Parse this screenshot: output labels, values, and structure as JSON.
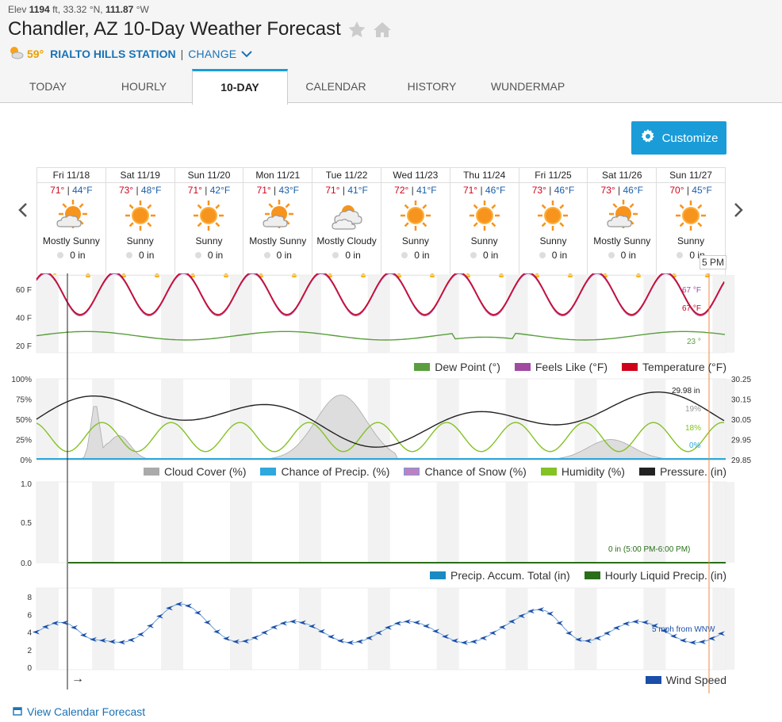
{
  "header": {
    "elev_label": "Elev",
    "elev_value": "1194",
    "elev_unit": "ft,",
    "lat_value": "33.32",
    "lat_unit": "°N,",
    "lon_value": "111.87",
    "lon_unit": "°W",
    "title": "Chandler, AZ 10-Day Weather Forecast",
    "current_temp": "59°",
    "station_name": "RIALTO HILLS STATION",
    "station_sep": "|",
    "change_label": "CHANGE"
  },
  "tabs": [
    {
      "label": "TODAY",
      "active": false
    },
    {
      "label": "HOURLY",
      "active": false
    },
    {
      "label": "10-DAY",
      "active": true
    },
    {
      "label": "CALENDAR",
      "active": false
    },
    {
      "label": "HISTORY",
      "active": false
    },
    {
      "label": "WUNDERMAP",
      "active": false
    }
  ],
  "customize_label": "Customize",
  "days": [
    {
      "date": "Fri 11/18",
      "hi": "71°",
      "lo": "44°F",
      "cond": "Mostly Sunny",
      "icon": "mostly-sunny-icon",
      "precip": "0 in"
    },
    {
      "date": "Sat 11/19",
      "hi": "73°",
      "lo": "48°F",
      "cond": "Sunny",
      "icon": "sunny-icon",
      "precip": "0 in"
    },
    {
      "date": "Sun 11/20",
      "hi": "71°",
      "lo": "42°F",
      "cond": "Sunny",
      "icon": "sunny-icon",
      "precip": "0 in"
    },
    {
      "date": "Mon 11/21",
      "hi": "71°",
      "lo": "43°F",
      "cond": "Mostly Sunny",
      "icon": "mostly-sunny-icon",
      "precip": "0 in"
    },
    {
      "date": "Tue 11/22",
      "hi": "71°",
      "lo": "41°F",
      "cond": "Mostly Cloudy",
      "icon": "mostly-cloudy-icon",
      "precip": "0 in"
    },
    {
      "date": "Wed 11/23",
      "hi": "72°",
      "lo": "41°F",
      "cond": "Sunny",
      "icon": "sunny-icon",
      "precip": "0 in"
    },
    {
      "date": "Thu 11/24",
      "hi": "71°",
      "lo": "46°F",
      "cond": "Sunny",
      "icon": "sunny-icon",
      "precip": "0 in"
    },
    {
      "date": "Fri 11/25",
      "hi": "73°",
      "lo": "46°F",
      "cond": "Sunny",
      "icon": "sunny-icon",
      "precip": "0 in"
    },
    {
      "date": "Sat 11/26",
      "hi": "73°",
      "lo": "46°F",
      "cond": "Mostly Sunny",
      "icon": "mostly-sunny-icon",
      "precip": "0 in"
    },
    {
      "date": "Sun 11/27",
      "hi": "70°",
      "lo": "45°F",
      "cond": "Sunny",
      "icon": "sunny-icon",
      "precip": "0 in"
    }
  ],
  "cursor_label": "5 PM",
  "temp_chart": {
    "y_ticks": [
      "60 F",
      "40 F",
      "20 F"
    ],
    "feels_like_readout": "67 °F",
    "temp_readout": "67 °F",
    "dew_readout": "23 °",
    "legend": [
      {
        "label": "Dew Point (°)",
        "color": "#5a9e3e"
      },
      {
        "label": "Feels Like (°F)",
        "color": "#a04aa0"
      },
      {
        "label": "Temperature (°F)",
        "color": "#d0021b"
      }
    ]
  },
  "cloud_chart": {
    "y_ticks_left": [
      "100%",
      "75%",
      "50%",
      "25%",
      "0%"
    ],
    "y_ticks_right": [
      "30.25",
      "30.15",
      "30.05",
      "29.95",
      "29.85"
    ],
    "pressure_readout": "29.98 in",
    "cloud_readout": "19%",
    "humidity_readout": "18%",
    "precip_readout": "0%",
    "legend": [
      {
        "label": "Cloud Cover (%)",
        "color": "#aaaaaa"
      },
      {
        "label": "Chance of Precip. (%)",
        "color": "#2fa8dc"
      },
      {
        "label": "Chance of Snow (%)",
        "color": "#c080c0"
      },
      {
        "label": "Humidity (%)",
        "color": "#84c225"
      },
      {
        "label": "Pressure. (in)",
        "color": "#222222"
      }
    ]
  },
  "precip_chart": {
    "y_ticks": [
      "1.0",
      "0.5",
      "0.0"
    ],
    "readout": "0 in (5:00 PM-6:00 PM)",
    "legend": [
      {
        "label": "Precip. Accum. Total (in)",
        "color": "#1a8ac4"
      },
      {
        "label": "Hourly Liquid Precip. (in)",
        "color": "#2a6e1a"
      }
    ]
  },
  "wind_chart": {
    "y_ticks": [
      "8",
      "6",
      "4",
      "2",
      "0"
    ],
    "readout": "5 mph from WNW",
    "arrow_glyph": "→",
    "legend": [
      {
        "label": "Wind Speed",
        "color": "#1a4ea8"
      }
    ]
  },
  "view_calendar_label": "View Calendar Forecast"
}
